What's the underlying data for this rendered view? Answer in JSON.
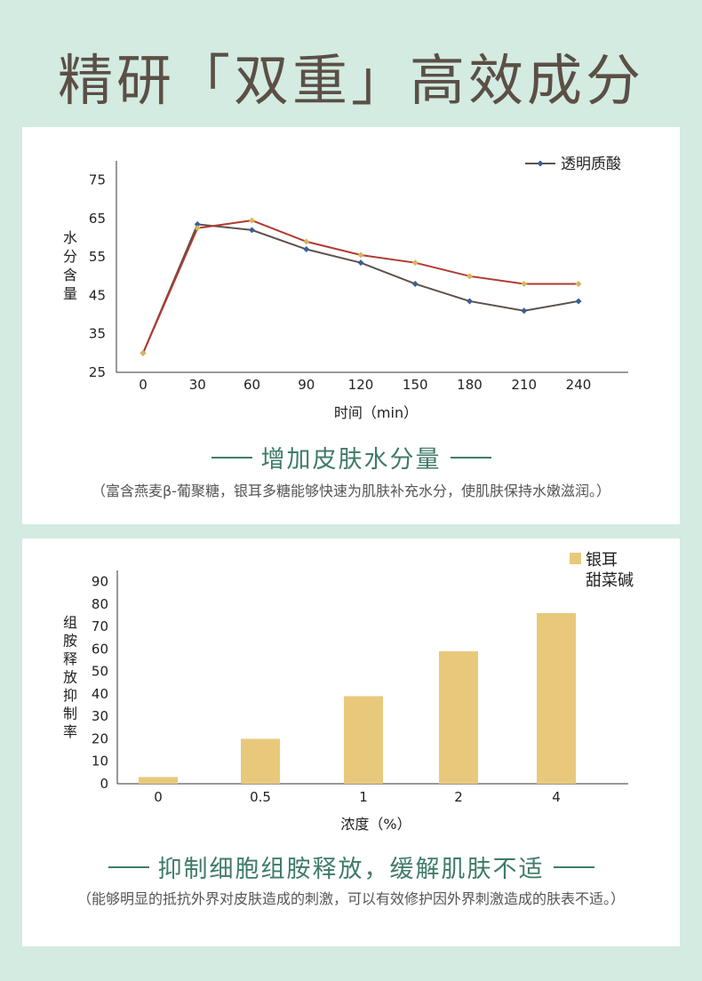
{
  "page_title": "精研「双重」高效成分",
  "colors": {
    "background": "#d3ebe1",
    "title": "#5b4f46",
    "heading": "#3f7b6a",
    "line_brown": "#5e514b",
    "line_red": "#b23a32",
    "marker_blue": "#3b5f95",
    "marker_gold": "#d8b45a",
    "bar": "#e8c97c"
  },
  "section1": {
    "heading": "增加皮肤水分量",
    "note": "（富含燕麦β-葡聚糖，银耳多糖能够快速为肌肤补充水分，使肌肤保持水嫩滋润。）"
  },
  "section2": {
    "heading": "抑制细胞组胺释放，缓解肌肤不适",
    "note": "（能够明显的抵抗外界对皮肤造成的刺激，可以有效修护因外界刺激造成的肤表不适。）"
  },
  "chart_data": [
    {
      "type": "line",
      "xlabel": "时间（min）",
      "ylabel": "水分含量",
      "x": [
        0,
        30,
        60,
        90,
        120,
        150,
        180,
        210,
        240
      ],
      "y_ticks": [
        25,
        35,
        45,
        55,
        65,
        75
      ],
      "ylim": [
        25,
        80
      ],
      "legend_position": "top-right",
      "series": [
        {
          "name": "透明质酸",
          "color": "#5e514b",
          "marker": "#3b5f95",
          "values": [
            30,
            63.5,
            62,
            57,
            53.5,
            48,
            43.5,
            41,
            43.5
          ]
        },
        {
          "color": "#b23a32",
          "marker": "#d8b45a",
          "values": [
            30,
            62.5,
            64.5,
            59,
            55.5,
            53.5,
            50,
            48,
            48
          ]
        }
      ]
    },
    {
      "type": "bar",
      "xlabel": "浓度（%）",
      "ylabel": "组胺释放抑制率",
      "categories": [
        "0",
        "0.5",
        "1",
        "2",
        "4"
      ],
      "y_ticks": [
        0,
        10,
        20,
        30,
        40,
        50,
        60,
        70,
        80,
        90
      ],
      "ylim": [
        0,
        95
      ],
      "legend": [
        "银耳",
        "甜菜碱"
      ],
      "legend_position": "top-right",
      "series": [
        {
          "values": [
            3,
            20,
            39,
            59,
            76
          ]
        }
      ]
    }
  ]
}
